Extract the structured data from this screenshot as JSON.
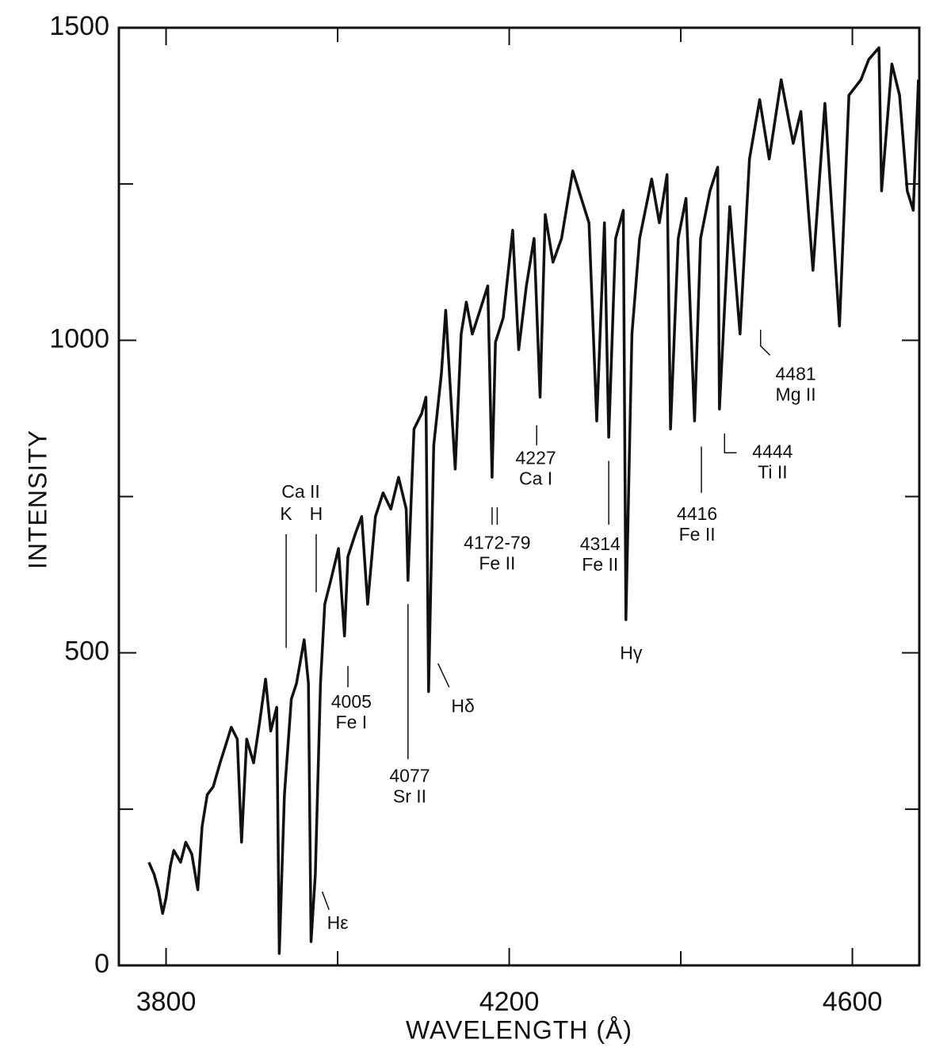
{
  "chart_data": {
    "type": "line",
    "xlabel": "WAVELENGTH (Å)",
    "ylabel": "INTENSITY",
    "xlim": [
      3745,
      4678
    ],
    "ylim": [
      0,
      1500
    ],
    "xticks": [
      3800,
      4200,
      4600
    ],
    "xminor_ticks": [
      4000,
      4400
    ],
    "yticks": [
      0,
      500,
      1000,
      1500
    ],
    "yminor_ticks": [
      250,
      750,
      1250
    ],
    "color": "#111111",
    "x": [
      3780,
      3786,
      3791,
      3796,
      3800,
      3805,
      3809,
      3817,
      3823,
      3830,
      3837,
      3842,
      3848,
      3855,
      3863,
      3869,
      3876,
      3883,
      3888,
      3894,
      3902,
      3909,
      3916,
      3922,
      3929,
      3932,
      3938,
      3946,
      3952,
      3961,
      3966,
      3969,
      3974,
      3980,
      3985,
      3992,
      4001,
      4008,
      4012,
      4021,
      4028,
      4035,
      4044,
      4053,
      4062,
      4071,
      4080,
      4082,
      4089,
      4098,
      4103,
      4106,
      4112,
      4121,
      4126,
      4132,
      4137,
      4144,
      4150,
      4157,
      4166,
      4175,
      4180,
      4184,
      4193,
      4204,
      4211,
      4220,
      4229,
      4236,
      4242,
      4251,
      4261,
      4274,
      4284,
      4293,
      4302,
      4311,
      4316,
      4324,
      4333,
      4336,
      4343,
      4352,
      4366,
      4375,
      4384,
      4388,
      4397,
      4406,
      4416,
      4423,
      4434,
      4443,
      4445,
      4457,
      4469,
      4480,
      4492,
      4503,
      4517,
      4531,
      4540,
      4554,
      4568,
      4585,
      4596,
      4610,
      4619,
      4631,
      4634,
      4646,
      4655,
      4664,
      4671,
      4677
    ],
    "values": [
      165,
      146,
      121,
      83,
      108,
      159,
      184,
      165,
      197,
      178,
      121,
      222,
      273,
      286,
      324,
      350,
      381,
      362,
      197,
      362,
      324,
      388,
      458,
      375,
      413,
      19,
      273,
      426,
      451,
      521,
      451,
      38,
      146,
      451,
      578,
      616,
      667,
      527,
      654,
      692,
      718,
      578,
      718,
      756,
      730,
      781,
      730,
      616,
      858,
      883,
      909,
      438,
      832,
      947,
      1048,
      909,
      794,
      1010,
      1061,
      1010,
      1048,
      1087,
      781,
      997,
      1036,
      1176,
      985,
      1087,
      1163,
      909,
      1201,
      1125,
      1163,
      1271,
      1227,
      1188,
      871,
      1188,
      845,
      1163,
      1208,
      553,
      1010,
      1163,
      1258,
      1188,
      1265,
      858,
      1163,
      1227,
      871,
      1163,
      1239,
      1277,
      890,
      1214,
      1010,
      1290,
      1385,
      1290,
      1417,
      1315,
      1366,
      1112,
      1379,
      1023,
      1392,
      1417,
      1449,
      1468,
      1239,
      1442,
      1392,
      1239,
      1208,
      1417
    ],
    "annotations": [
      {
        "lines": [
          "Ca II"
        ],
        "x": 3957,
        "y": 756,
        "markers": []
      },
      {
        "lines": [
          "K"
        ],
        "x": 3940,
        "y": 720,
        "markers": [
          [
            [
              3940,
              690
            ],
            [
              3940,
              508
            ]
          ]
        ]
      },
      {
        "lines": [
          "H"
        ],
        "x": 3975,
        "y": 720,
        "markers": [
          [
            [
              3975,
              690
            ],
            [
              3975,
              597
            ]
          ]
        ]
      },
      {
        "lines": [
          "4005",
          "Fe I"
        ],
        "x": 4016,
        "y": 420,
        "markers": [
          [
            [
              4012,
              479
            ],
            [
              4012,
              445
            ]
          ]
        ]
      },
      {
        "lines": [
          "Hε"
        ],
        "x": 4000,
        "y": 66,
        "markers": [
          [
            [
              3982,
              118
            ],
            [
              3990,
              89
            ]
          ]
        ]
      },
      {
        "lines": [
          "4077",
          "Sr II"
        ],
        "x": 4084,
        "y": 301,
        "markers": [
          [
            [
              4082,
              578
            ],
            [
              4082,
              330
            ]
          ]
        ]
      },
      {
        "lines": [
          "Hδ"
        ],
        "x": 4146,
        "y": 413,
        "markers": [
          [
            [
              4117,
              483
            ],
            [
              4130,
              445
            ]
          ]
        ]
      },
      {
        "lines": [
          "4172-79",
          "Fe II"
        ],
        "x": 4186,
        "y": 674,
        "markers": [
          [
            [
              4180,
              733
            ],
            [
              4180,
              705
            ]
          ],
          [
            [
              4186,
              733
            ],
            [
              4186,
              705
            ]
          ]
        ]
      },
      {
        "lines": [
          "4227",
          "Ca I"
        ],
        "x": 4231,
        "y": 810,
        "markers": [
          [
            [
              4232,
              864
            ],
            [
              4232,
              832
            ]
          ]
        ]
      },
      {
        "lines": [
          "4314",
          "Fe II"
        ],
        "x": 4306,
        "y": 672,
        "markers": [
          [
            [
              4316,
              807
            ],
            [
              4316,
              705
            ]
          ]
        ]
      },
      {
        "lines": [
          "Hγ"
        ],
        "x": 4342,
        "y": 498,
        "markers": []
      },
      {
        "lines": [
          "4416",
          "Fe II"
        ],
        "x": 4419,
        "y": 720,
        "markers": [
          [
            [
              4424,
              830
            ],
            [
              4424,
              756
            ]
          ]
        ]
      },
      {
        "lines": [
          "4444",
          "Ti II"
        ],
        "x": 4507,
        "y": 820,
        "markers": [
          [
            [
              4451,
              851
            ],
            [
              4451,
              820
            ],
            [
              4465,
              820
            ]
          ]
        ]
      },
      {
        "lines": [
          "4481",
          "Mg II"
        ],
        "x": 4534,
        "y": 944,
        "markers": [
          [
            [
              4493,
              1017
            ],
            [
              4493,
              991
            ],
            [
              4504,
              976
            ]
          ]
        ]
      }
    ]
  }
}
